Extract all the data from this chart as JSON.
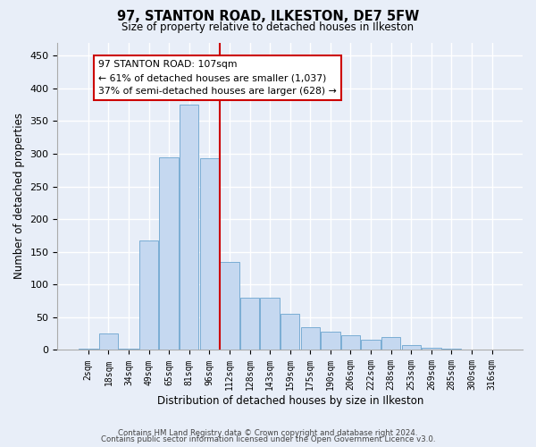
{
  "title1": "97, STANTON ROAD, ILKESTON, DE7 5FW",
  "title2": "Size of property relative to detached houses in Ilkeston",
  "xlabel": "Distribution of detached houses by size in Ilkeston",
  "ylabel": "Number of detached properties",
  "footnote1": "Contains HM Land Registry data © Crown copyright and database right 2024.",
  "footnote2": "Contains public sector information licensed under the Open Government Licence v3.0.",
  "annotation_line1": "97 STANTON ROAD: 107sqm",
  "annotation_line2": "← 61% of detached houses are smaller (1,037)",
  "annotation_line3": "37% of semi-detached houses are larger (628) →",
  "bar_color": "#c5d8f0",
  "bar_edge_color": "#7aadd4",
  "vline_color": "#cc0000",
  "vline_x": 6.5,
  "categories": [
    "2sqm",
    "18sqm",
    "34sqm",
    "49sqm",
    "65sqm",
    "81sqm",
    "96sqm",
    "112sqm",
    "128sqm",
    "143sqm",
    "159sqm",
    "175sqm",
    "190sqm",
    "206sqm",
    "222sqm",
    "238sqm",
    "253sqm",
    "269sqm",
    "285sqm",
    "300sqm",
    "316sqm"
  ],
  "values": [
    2,
    25,
    2,
    167,
    295,
    375,
    293,
    135,
    80,
    80,
    55,
    35,
    28,
    22,
    15,
    20,
    7,
    4,
    2,
    1,
    1
  ],
  "ylim": [
    0,
    470
  ],
  "yticks": [
    0,
    50,
    100,
    150,
    200,
    250,
    300,
    350,
    400,
    450
  ],
  "background_color": "#e8eef8",
  "grid_color": "#ffffff",
  "figsize": [
    6.0,
    5.0
  ],
  "dpi": 100
}
